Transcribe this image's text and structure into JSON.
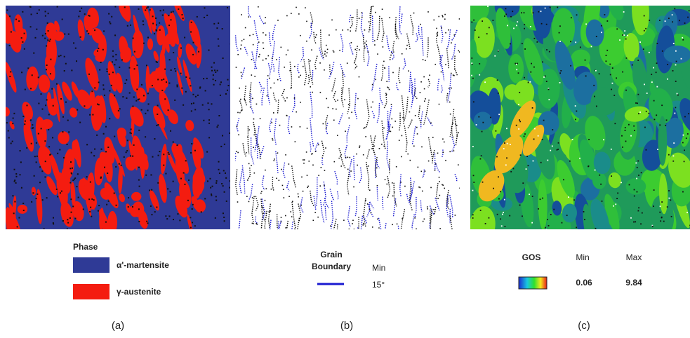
{
  "panels": [
    {
      "label": "(a)",
      "legend": {
        "title": "Phase",
        "items": [
          "α'-martensite",
          "γ-austenite"
        ]
      }
    },
    {
      "label": "(b)",
      "legend": {
        "title_lines": [
          "Grain",
          "Boundary"
        ],
        "column": "Min",
        "value": "15°"
      }
    },
    {
      "label": "(c)",
      "legend": {
        "title": "GOS",
        "min_label": "Min",
        "max_label": "Max",
        "min": 0.06,
        "max": 9.84
      }
    }
  ]
}
